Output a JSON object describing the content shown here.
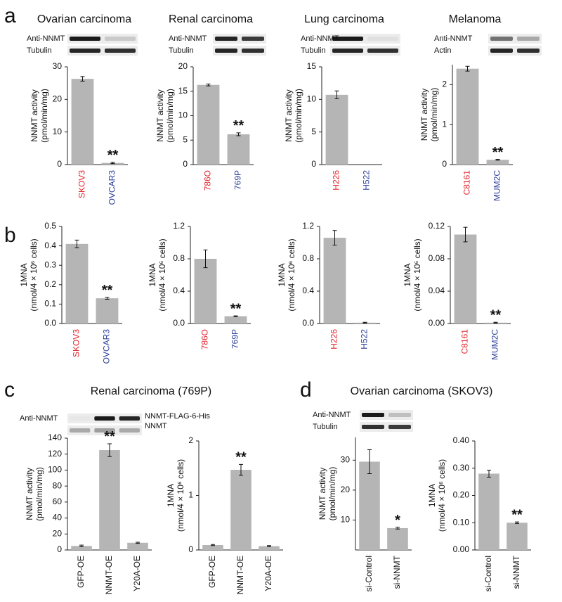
{
  "panel_labels": [
    "a",
    "b",
    "c",
    "d"
  ],
  "group_titles": [
    "Renal carcinoma (769P)",
    "Ovarian carcinoma (SKOV3)"
  ],
  "blots": [
    {
      "labels": [
        "Anti-NNMT",
        "Tubulin"
      ]
    },
    {
      "labels": [
        "Anti-NNMT",
        "Tubulin"
      ]
    },
    {
      "labels": [
        "Anti-NNMT",
        "Tubulin"
      ]
    },
    {
      "labels": [
        "Anti-NNMT",
        "Actin"
      ]
    },
    {
      "labels": [
        "Anti-NNMT"
      ],
      "side_labels": [
        "NNMT-FLAG-6-His",
        "NNMT"
      ]
    },
    {
      "labels": [
        "Anti-NNMT",
        "Tubulin"
      ]
    }
  ],
  "chart_data": [
    {
      "type": "bar",
      "title": "Ovarian carcinoma",
      "ylabel": [
        "NNMT activity",
        "(pmol/min/mg)"
      ],
      "categories": [
        "SKOV3",
        "OVCAR3"
      ],
      "category_colors": [
        "#e3242b",
        "#2b3f9a"
      ],
      "color": "#b5b5b5",
      "values": [
        26.3,
        0.5
      ],
      "errors": [
        0.7,
        0.2
      ],
      "annotations": [
        null,
        "**"
      ],
      "ylim": [
        0,
        30
      ],
      "yticks": [
        0,
        10,
        20,
        30
      ]
    },
    {
      "type": "bar",
      "title": "Renal carcinoma",
      "ylabel": [
        "NNMT activity",
        "(pmol/min/mg)"
      ],
      "categories": [
        "786O",
        "769P"
      ],
      "category_colors": [
        "#e3242b",
        "#2b3f9a"
      ],
      "color": "#b5b5b5",
      "values": [
        16.3,
        6.2
      ],
      "errors": [
        0.2,
        0.3
      ],
      "annotations": [
        null,
        "**"
      ],
      "ylim": [
        0,
        20
      ],
      "yticks": [
        0,
        5,
        10,
        15,
        20
      ]
    },
    {
      "type": "bar",
      "title": "Lung carcinoma",
      "ylabel": [
        "NNMT activity",
        "(pmol/min/mg)"
      ],
      "categories": [
        "H226",
        "H522"
      ],
      "category_colors": [
        "#e3242b",
        "#2b3f9a"
      ],
      "color": "#b5b5b5",
      "values": [
        10.7,
        0
      ],
      "errors": [
        0.6,
        null
      ],
      "annotations": [
        null,
        null
      ],
      "ylim": [
        0,
        15
      ],
      "yticks": [
        0,
        5,
        10,
        15
      ]
    },
    {
      "type": "bar",
      "title": "Melanoma",
      "ylabel": [
        "NNMT activity",
        "(pmol/min/mg)"
      ],
      "categories": [
        "C8161",
        "MUM2C"
      ],
      "category_colors": [
        "#e3242b",
        "#2b3f9a"
      ],
      "color": "#b5b5b5",
      "values": [
        2.4,
        0.12
      ],
      "errors": [
        0.06,
        0.01
      ],
      "annotations": [
        null,
        "**"
      ],
      "ylim": [
        0,
        2.5
      ],
      "yticks": [
        0,
        1,
        2
      ]
    },
    {
      "type": "bar",
      "ylabel": [
        "1MNA",
        "(nmol/4 × 10⁶ cells)"
      ],
      "categories": [
        "SKOV3",
        "OVCAR3"
      ],
      "category_colors": [
        "#e3242b",
        "#2b3f9a"
      ],
      "color": "#b5b5b5",
      "values": [
        0.41,
        0.13
      ],
      "errors": [
        0.02,
        0.005
      ],
      "annotations": [
        null,
        "**"
      ],
      "ylim": [
        0,
        0.5
      ],
      "yticks": [
        {
          "value": 0,
          "label": "0.0"
        },
        0.1,
        0.2,
        0.3,
        0.4,
        0.5
      ]
    },
    {
      "type": "bar",
      "ylabel": [
        "1MNA",
        "(nmol/4 × 10⁶ cells)"
      ],
      "categories": [
        "786O",
        "769P"
      ],
      "category_colors": [
        "#e3242b",
        "#2b3f9a"
      ],
      "color": "#b5b5b5",
      "values": [
        0.8,
        0.09
      ],
      "errors": [
        0.11,
        0.005
      ],
      "annotations": [
        null,
        "**"
      ],
      "ylim": [
        0,
        1.2
      ],
      "yticks": [
        {
          "value": 0,
          "label": "0.0"
        },
        0.4,
        0.8,
        1.2
      ]
    },
    {
      "type": "bar",
      "ylabel": [
        "1MNA",
        "(nmol/4 × 10⁶ cells)"
      ],
      "categories": [
        "H226",
        "H522"
      ],
      "category_colors": [
        "#e3242b",
        "#2b3f9a"
      ],
      "color": "#b5b5b5",
      "values": [
        1.06,
        0.01
      ],
      "errors": [
        0.09,
        0.005
      ],
      "annotations": [
        null,
        null
      ],
      "ylim": [
        0,
        1.2
      ],
      "yticks": [
        {
          "value": 0,
          "label": "0.0"
        },
        0.4,
        0.8,
        1.2
      ]
    },
    {
      "type": "bar",
      "ylabel": [
        "1MNA",
        "(nmol/4 × 10⁶ cells)"
      ],
      "categories": [
        "C8161",
        "MUM2C"
      ],
      "category_colors": [
        "#e3242b",
        "#2b3f9a"
      ],
      "color": "#b5b5b5",
      "values": [
        0.11,
        0.001
      ],
      "errors": [
        0.009,
        0.0005
      ],
      "annotations": [
        null,
        "**"
      ],
      "ylim": [
        0,
        0.12
      ],
      "yticks": [
        {
          "value": 0,
          "label": "0.00"
        },
        0.04,
        0.08,
        0.12
      ]
    },
    {
      "type": "bar",
      "ylabel": [
        "NNMT activity",
        "(pmol/min/mg)"
      ],
      "categories": [
        "GFP-OE",
        "NNMT-OE",
        "Y20A-OE"
      ],
      "color": "#b5b5b5",
      "values": [
        5,
        125,
        9
      ],
      "errors": [
        1,
        8,
        0.7
      ],
      "annotations": [
        null,
        "**",
        null
      ],
      "ylim": [
        0,
        140
      ],
      "yticks": [
        0,
        20,
        40,
        60,
        80,
        100,
        120,
        140
      ]
    },
    {
      "type": "bar",
      "ylabel": [
        "1MNA",
        "(nmol/4 × 10⁶ cells)"
      ],
      "categories": [
        "GFP-OE",
        "NNMT-OE",
        "Y20A-OE"
      ],
      "color": "#b5b5b5",
      "values": [
        0.09,
        1.47,
        0.07
      ],
      "errors": [
        0.01,
        0.1,
        0.01
      ],
      "annotations": [
        null,
        "**",
        null
      ],
      "ylim": [
        0,
        2
      ],
      "yticks": [
        0,
        1,
        2
      ]
    },
    {
      "type": "bar",
      "ylabel": [
        "NNMT activity",
        "(pmol/min/mg)"
      ],
      "categories": [
        "si-Control",
        "si-NNMT"
      ],
      "color": "#b5b5b5",
      "values": [
        29.5,
        7.3
      ],
      "errors": [
        4,
        0.3
      ],
      "annotations": [
        null,
        "*"
      ],
      "ylim": [
        0,
        37.6
      ],
      "yticks": [
        10,
        20,
        30
      ]
    },
    {
      "type": "bar",
      "ylabel": [
        "1MNA",
        "(nmol/4 × 10⁶ cells)"
      ],
      "categories": [
        "si-Control",
        "si-NNMT"
      ],
      "color": "#b5b5b5",
      "values": [
        0.28,
        0.1
      ],
      "errors": [
        0.013,
        0.003
      ],
      "annotations": [
        null,
        "**"
      ],
      "ylim": [
        0,
        0.4
      ],
      "yticks": [
        {
          "value": 0,
          "label": "0.00"
        },
        {
          "value": 0.1,
          "label": "0.10"
        },
        {
          "value": 0.2,
          "label": "0.20"
        },
        {
          "value": 0.3,
          "label": "0.30"
        },
        {
          "value": 0.4,
          "label": "0.40"
        }
      ]
    }
  ]
}
